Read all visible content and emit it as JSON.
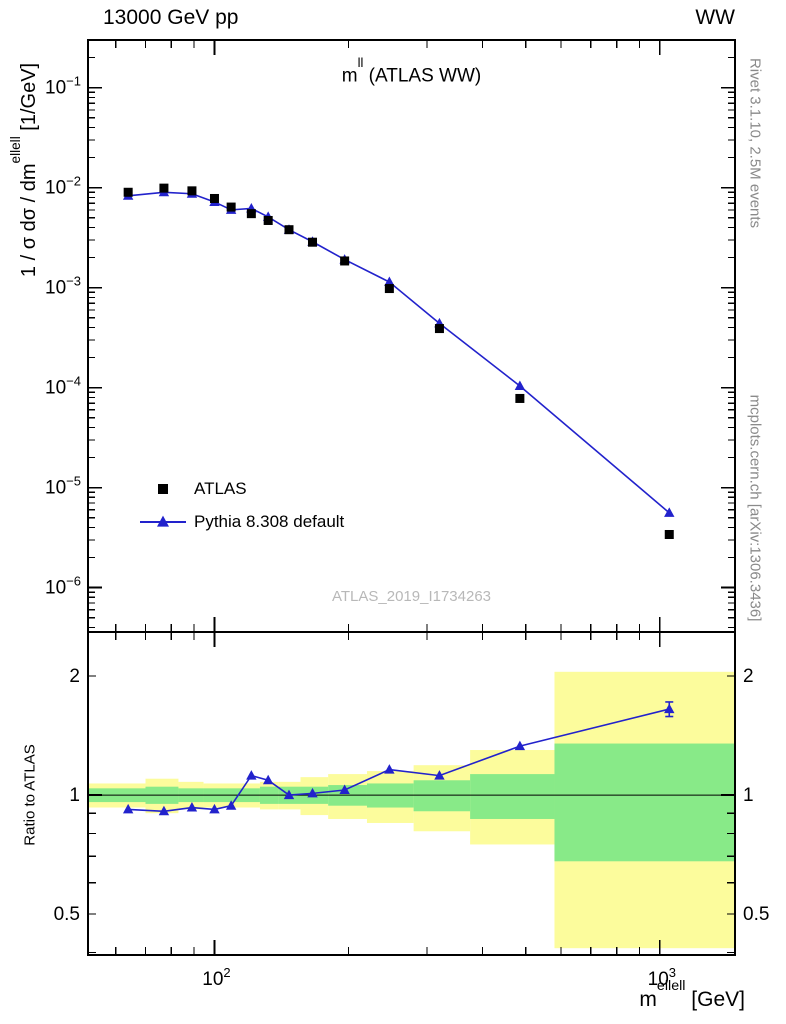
{
  "header": {
    "left": "13000 GeV pp",
    "right": "WW"
  },
  "title": {
    "base": "m",
    "sup": "ll",
    "rest": " (ATLAS WW)"
  },
  "watermark": "ATLAS_2019_I1734263",
  "side_notes": {
    "top": "Rivet 3.1.10,  2.5M events",
    "bottom": "mcplots.cern.ch [arXiv:1306.3436]"
  },
  "axis_labels": {
    "y_main_pre": "1 / σ  dσ / dm",
    "y_main_sup": "ellell",
    "y_main_post": " [1/GeV]",
    "y_ratio": "Ratio to ATLAS",
    "x_base": "m",
    "x_sup": "ellell",
    "x_post": " [GeV]"
  },
  "legend": [
    {
      "label": "ATLAS",
      "marker": "square",
      "color": "#000000"
    },
    {
      "label": "Pythia 8.308 default",
      "marker": "line-triangle",
      "color": "#2222cc"
    }
  ],
  "colors": {
    "frame": "#000000",
    "reference_line": "#000000",
    "watermark": "#b8b8b8",
    "band_yellow": "#fcfc9c",
    "band_green": "#88ea88",
    "mc_blue": "#2222cc"
  },
  "chart_data": [
    {
      "type": "line",
      "panel": "main",
      "title": "m^ll (ATLAS WW)",
      "xlabel": "m^ellell [GeV]",
      "ylabel": "1 / σ dσ/dm^ellell [1/GeV]",
      "xscale": "log",
      "yscale": "log",
      "xlim": [
        52,
        1475
      ],
      "ylim": [
        3.6e-07,
        0.3
      ],
      "x_major_ticks": [
        100,
        1000
      ],
      "y_major_ticks": [
        1e-06,
        1e-05,
        0.0001,
        0.001,
        0.01,
        0.1
      ],
      "x": [
        64,
        77,
        89,
        100,
        109,
        121,
        132,
        147,
        166,
        196,
        247,
        320,
        485,
        1050
      ],
      "series": [
        {
          "name": "ATLAS",
          "marker": "square",
          "color": "#000000",
          "line": false,
          "values": [
            0.009,
            0.0099,
            0.0093,
            0.0078,
            0.0064,
            0.0055,
            0.0047,
            0.0038,
            0.00285,
            0.00185,
            0.00098,
            0.00039,
            7.8e-05,
            3.4e-06
          ]
        },
        {
          "name": "Pythia 8.308 default",
          "marker": "triangle",
          "color": "#2222cc",
          "line": true,
          "values": [
            0.0083,
            0.009,
            0.0087,
            0.0072,
            0.006,
            0.0062,
            0.0051,
            0.0038,
            0.00288,
            0.00191,
            0.00114,
            0.00044,
            0.000104,
            5.6e-06
          ]
        }
      ]
    },
    {
      "type": "ratio",
      "panel": "ratio",
      "ylabel": "Ratio to ATLAS",
      "yscale": "log",
      "ylim": [
        0.394,
        2.585
      ],
      "y_ticks": [
        0.5,
        1,
        2
      ],
      "reference_line": 1,
      "x": [
        64,
        77,
        89,
        100,
        109,
        121,
        132,
        147,
        166,
        196,
        247,
        320,
        485,
        1050
      ],
      "values": [
        0.92,
        0.91,
        0.93,
        0.92,
        0.94,
        1.12,
        1.09,
        1.0,
        1.01,
        1.03,
        1.16,
        1.12,
        1.33,
        1.65
      ],
      "last_point_error": 0.07,
      "bands": {
        "bin_edges": [
          52,
          70,
          83,
          94.5,
          104.5,
          115,
          126.5,
          139.5,
          156,
          180,
          220,
          280,
          375,
          580,
          1475
        ],
        "yellow": {
          "color": "#fcfc9c",
          "lo": [
            0.93,
            0.9,
            0.92,
            0.93,
            0.93,
            0.93,
            0.92,
            0.92,
            0.89,
            0.87,
            0.85,
            0.81,
            0.75,
            0.41
          ],
          "hi": [
            1.07,
            1.1,
            1.08,
            1.07,
            1.07,
            1.07,
            1.08,
            1.08,
            1.11,
            1.13,
            1.15,
            1.19,
            1.3,
            2.05
          ]
        },
        "green": {
          "color": "#88ea88",
          "lo": [
            0.96,
            0.95,
            0.96,
            0.96,
            0.96,
            0.96,
            0.95,
            0.95,
            0.95,
            0.94,
            0.93,
            0.91,
            0.87,
            0.68
          ],
          "hi": [
            1.04,
            1.05,
            1.04,
            1.04,
            1.04,
            1.04,
            1.05,
            1.05,
            1.05,
            1.06,
            1.07,
            1.09,
            1.13,
            1.35
          ]
        }
      }
    }
  ]
}
